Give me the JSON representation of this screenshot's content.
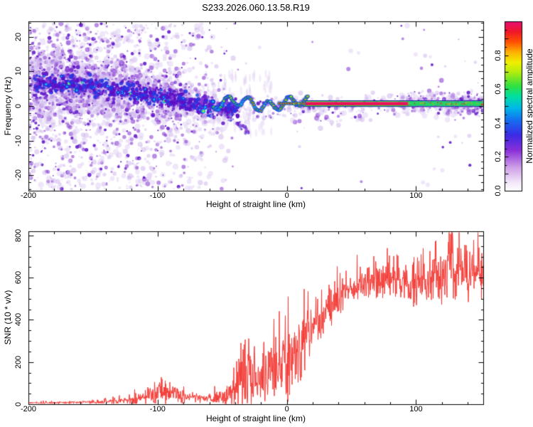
{
  "title": "S233.2026.060.13.58.R19",
  "chart_data": [
    {
      "type": "heatmap",
      "description": "Radio-meteor style range-Doppler spectrogram: diffuse purple noise on the left half, a dark purple-blue echo band descending from about +7 Hz at -200 km to 0 Hz near -60 km, a wavy bright ridge (green/red cores) around 0..+2 Hz from -55 to +15 km, and a straight narrow crimson/green/blue stripe at about +0.8 Hz from +15 km to the right edge with blobby green-red structure and purple fuzz beyond +95 km.",
      "xlabel": "Height of straight line (km)",
      "ylabel": "Frequency (Hz)",
      "xlim": [
        -200,
        152
      ],
      "ylim": [
        -24.5,
        24.5
      ],
      "x_ticks": {
        "values": [
          -200,
          -100,
          0,
          100
        ],
        "labels": [
          "-200",
          "-100",
          "0",
          "100"
        ],
        "minor_step": 20
      },
      "y_ticks": {
        "values": [
          -20,
          -10,
          0,
          10,
          20
        ],
        "labels": [
          "-20",
          "-10",
          "0",
          "10",
          "20"
        ],
        "minor_step": 2
      },
      "colorbar": {
        "label": "Normalized spectral amplitude",
        "range": [
          0,
          1
        ],
        "tick_values": [
          0,
          0.2,
          0.4,
          0.6,
          0.8
        ],
        "tick_labels": [
          "0.0",
          "0.2",
          "0.4",
          "0.6",
          "0.8"
        ],
        "stops": [
          [
            0.0,
            "#ffffff"
          ],
          [
            0.05,
            "#f3e8fa"
          ],
          [
            0.14,
            "#cfa0e8"
          ],
          [
            0.24,
            "#8a30d8"
          ],
          [
            0.33,
            "#3c2ae4"
          ],
          [
            0.42,
            "#1470f0"
          ],
          [
            0.49,
            "#00b8e8"
          ],
          [
            0.56,
            "#00e0a0"
          ],
          [
            0.62,
            "#30e040"
          ],
          [
            0.7,
            "#b0ec10"
          ],
          [
            0.76,
            "#f0f000"
          ],
          [
            0.82,
            "#ffb000"
          ],
          [
            0.88,
            "#ff5000"
          ],
          [
            0.94,
            "#f01828"
          ],
          [
            1.0,
            "#e60e74"
          ]
        ]
      },
      "palette": {
        "lavender": "#d7c3ef",
        "lavender2": "#c5a8e8",
        "purple": "#8a3fd4",
        "dark": "#5c10c8",
        "blue": "#2a34e0",
        "cyan": "#00c6ea",
        "green": "#2ade36",
        "yellowgreen": "#b8e818",
        "yellow": "#eef000",
        "orange": "#ff9800",
        "red": "#ee2424",
        "crimson": "#e81256",
        "navy": "#1616a0"
      },
      "features": {
        "noise": {
          "attempts": 9000,
          "grain_attempts": 2400,
          "density_profile": [
            [
              -200,
              1
            ],
            [
              -155,
              0.98
            ],
            [
              -110,
              0.8
            ],
            [
              -75,
              0.55
            ],
            [
              -55,
              0.3
            ],
            [
              -42,
              0.14
            ],
            [
              -30,
              0.07
            ],
            [
              85,
              0.06
            ],
            [
              95,
              0.2
            ],
            [
              152,
              0.22
            ]
          ],
          "sigma_profile": [
            [
              -200,
              12.5
            ],
            [
              -150,
              10
            ],
            [
              -105,
              6.5
            ],
            [
              -70,
              5
            ],
            [
              -45,
              3.8
            ],
            [
              152,
              3.2
            ]
          ],
          "uniform_fraction_far": 0.38,
          "uniform_fraction_near": 0.1,
          "uniform_split_km": -45
        },
        "band": {
          "path": [
            [
              -200,
              6.8
            ],
            [
              -168,
              6.4
            ],
            [
              -140,
              5.2
            ],
            [
              -115,
              4.0
            ],
            [
              -95,
              2.6
            ],
            [
              -80,
              1.2
            ],
            [
              -68,
              0.4
            ],
            [
              -55,
              -0.2
            ],
            [
              -45,
              -0.6
            ]
          ],
          "sigma_hz": 2.5,
          "count": 780,
          "from": -196,
          "to": -38
        },
        "tail": {
          "path": [
            [
              -52,
              -0.8
            ],
            [
              -44,
              -3.0
            ],
            [
              -36,
              -5.5
            ],
            [
              -30,
              -7.5
            ]
          ],
          "count": 70
        },
        "streaks": {
          "from": -65,
          "to": -12,
          "count": 90
        },
        "wavy": {
          "from": -57,
          "to": 16,
          "base": 0.8,
          "a1": 1.5,
          "w1": 0.4,
          "p1": 1.1,
          "a2": 0.85,
          "w2": 0.13,
          "p2": 0.4,
          "red_from": -34
        },
        "stripe": {
          "from": 12,
          "to": 152,
          "center_hz": 0.8
        },
        "beads": {
          "from": -6,
          "to": 14,
          "step": 1.9
        },
        "right_blobs": {
          "from": 95,
          "to": 152
        }
      }
    },
    {
      "type": "line",
      "xlabel": "Height of straight line (km)",
      "ylabel": "SNR (10 * v/v)",
      "xlim": [
        -200,
        152
      ],
      "ylim": [
        0,
        820
      ],
      "x_ticks": {
        "values": [
          -200,
          -100,
          0,
          100
        ],
        "labels": [
          "-200",
          "-100",
          "0",
          "100"
        ],
        "minor_step": 20
      },
      "y_ticks": {
        "values": [
          0,
          200,
          400,
          600,
          800
        ],
        "labels": [
          "0",
          "200",
          "400",
          "600",
          "800"
        ],
        "minor_step": 50
      },
      "color": "#f23b36",
      "envelope_format": [
        "km",
        "snr_base",
        "spike_amplitude"
      ],
      "envelope": [
        [
          -200,
          8,
          10
        ],
        [
          -175,
          9,
          12
        ],
        [
          -155,
          11,
          14
        ],
        [
          -138,
          14,
          22
        ],
        [
          -124,
          20,
          34
        ],
        [
          -113,
          32,
          60
        ],
        [
          -105,
          55,
          110
        ],
        [
          -97,
          65,
          130
        ],
        [
          -91,
          58,
          115
        ],
        [
          -85,
          48,
          85
        ],
        [
          -79,
          36,
          52
        ],
        [
          -72,
          30,
          38
        ],
        [
          -65,
          28,
          36
        ],
        [
          -58,
          31,
          46
        ],
        [
          -52,
          36,
          70
        ],
        [
          -46,
          45,
          110
        ],
        [
          -41,
          55,
          160
        ],
        [
          -38,
          110,
          330
        ],
        [
          -34,
          125,
          330
        ],
        [
          -30,
          115,
          280
        ],
        [
          -26,
          108,
          235
        ],
        [
          -22,
          125,
          250
        ],
        [
          -18,
          145,
          265
        ],
        [
          -14,
          158,
          280
        ],
        [
          -10,
          168,
          290
        ],
        [
          -6,
          178,
          300
        ],
        [
          -2,
          195,
          300
        ],
        [
          2,
          215,
          300
        ],
        [
          6,
          245,
          290
        ],
        [
          10,
          278,
          280
        ],
        [
          14,
          308,
          260
        ],
        [
          18,
          340,
          240
        ],
        [
          22,
          372,
          220
        ],
        [
          26,
          402,
          205
        ],
        [
          30,
          432,
          190
        ],
        [
          34,
          462,
          180
        ],
        [
          38,
          492,
          170
        ],
        [
          42,
          520,
          160
        ],
        [
          46,
          540,
          150
        ],
        [
          50,
          556,
          145
        ],
        [
          56,
          570,
          142
        ],
        [
          62,
          580,
          140
        ],
        [
          68,
          576,
          145
        ],
        [
          74,
          584,
          146
        ],
        [
          80,
          590,
          150
        ],
        [
          86,
          582,
          155
        ],
        [
          92,
          576,
          162
        ],
        [
          98,
          566,
          172
        ],
        [
          104,
          582,
          185
        ],
        [
          110,
          600,
          205
        ],
        [
          114,
          610,
          235
        ],
        [
          118,
          592,
          265
        ],
        [
          122,
          620,
          245
        ],
        [
          126,
          632,
          235
        ],
        [
          130,
          612,
          265
        ],
        [
          134,
          640,
          245
        ],
        [
          138,
          622,
          265
        ],
        [
          142,
          636,
          255
        ],
        [
          146,
          626,
          258
        ],
        [
          150,
          632,
          252
        ],
        [
          152,
          630,
          252
        ]
      ]
    }
  ]
}
